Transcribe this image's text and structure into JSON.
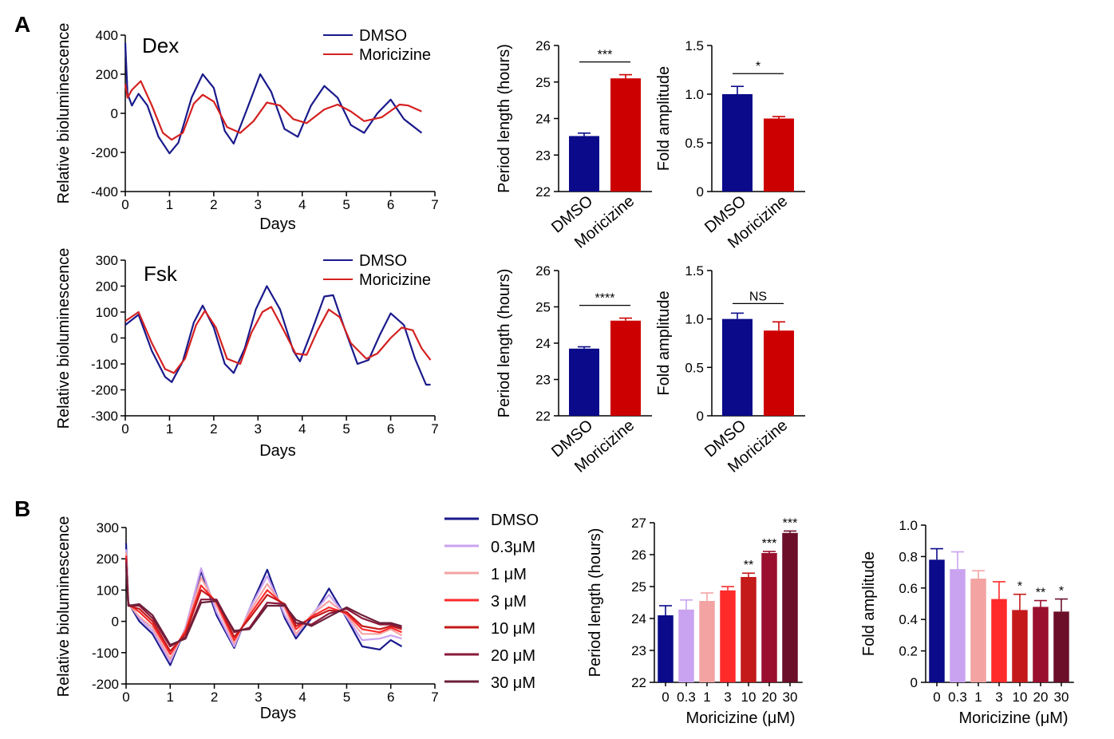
{
  "chart_data": [
    {
      "id": "A_dex_trace",
      "type": "line",
      "panel_label": "A",
      "annotation": "Dex",
      "xlabel": "Days",
      "ylabel": "Relative bioluminescence",
      "xlim": [
        0,
        7
      ],
      "ylim": [
        -400,
        400
      ],
      "xticks": [
        0,
        1,
        2,
        3,
        4,
        5,
        6,
        7
      ],
      "yticks": [
        -400,
        -200,
        0,
        200,
        400
      ],
      "legend_position": "top-right",
      "series": [
        {
          "name": "DMSO",
          "color": "#1a1a8c",
          "x": [
            0,
            0.05,
            0.15,
            0.3,
            0.5,
            0.75,
            1.0,
            1.2,
            1.5,
            1.75,
            2.0,
            2.25,
            2.45,
            2.75,
            3.05,
            3.3,
            3.6,
            3.9,
            4.2,
            4.5,
            4.8,
            5.1,
            5.4,
            5.7,
            6.0,
            6.3,
            6.7
          ],
          "values": [
            360,
            100,
            40,
            100,
            40,
            -120,
            -205,
            -150,
            80,
            200,
            130,
            -90,
            -155,
            20,
            200,
            110,
            -80,
            -120,
            40,
            140,
            80,
            -60,
            -100,
            0,
            70,
            -30,
            -100
          ]
        },
        {
          "name": "Moricizine",
          "color": "#d42020",
          "x": [
            0,
            0.05,
            0.15,
            0.35,
            0.6,
            0.85,
            1.05,
            1.3,
            1.55,
            1.75,
            2.0,
            2.3,
            2.6,
            2.9,
            3.2,
            3.5,
            3.8,
            4.1,
            4.5,
            4.8,
            5.1,
            5.4,
            5.8,
            6.2,
            6.4,
            6.7
          ],
          "values": [
            150,
            80,
            120,
            165,
            40,
            -100,
            -135,
            -100,
            50,
            95,
            60,
            -70,
            -100,
            -40,
            55,
            40,
            -30,
            -50,
            20,
            45,
            10,
            -40,
            -20,
            45,
            40,
            10
          ]
        }
      ]
    },
    {
      "id": "A_dex_period",
      "type": "bar",
      "categories": [
        "DMSO",
        "Moricizine"
      ],
      "values": [
        23.52,
        25.1
      ],
      "errors": [
        0.08,
        0.1
      ],
      "colors": [
        "#0a0a8a",
        "#cc0000"
      ],
      "ylabel": "Period length (hours)",
      "ylim": [
        22,
        26
      ],
      "yticks": [
        22,
        23,
        24,
        25,
        26
      ],
      "significance": [
        {
          "from": 0,
          "to": 1,
          "label": "***"
        }
      ]
    },
    {
      "id": "A_dex_amp",
      "type": "bar",
      "categories": [
        "DMSO",
        "Moricizine"
      ],
      "values": [
        1.0,
        0.75
      ],
      "errors": [
        0.08,
        0.02
      ],
      "colors": [
        "#0a0a8a",
        "#cc0000"
      ],
      "ylabel": "Fold amplitude",
      "ylim": [
        0,
        1.5
      ],
      "yticks": [
        0,
        0.5,
        1.0,
        1.5
      ],
      "ytick_labels": [
        "0",
        "0.5",
        "1.0",
        "1.5"
      ],
      "significance": [
        {
          "from": 0,
          "to": 1,
          "label": "*"
        }
      ]
    },
    {
      "id": "A_fsk_trace",
      "type": "line",
      "annotation": "Fsk",
      "xlabel": "Days",
      "ylabel": "Relative bioluminescence",
      "xlim": [
        0,
        7
      ],
      "ylim": [
        -300,
        300
      ],
      "xticks": [
        0,
        1,
        2,
        3,
        4,
        5,
        6,
        7
      ],
      "yticks": [
        -300,
        -200,
        -100,
        0,
        100,
        200,
        300
      ],
      "legend_position": "top-right",
      "series": [
        {
          "name": "DMSO",
          "color": "#1a1a8c",
          "x": [
            0,
            0.3,
            0.6,
            0.9,
            1.05,
            1.3,
            1.55,
            1.75,
            2.0,
            2.25,
            2.45,
            2.7,
            2.95,
            3.2,
            3.5,
            3.8,
            3.95,
            4.2,
            4.5,
            4.7,
            4.95,
            5.25,
            5.5,
            5.75,
            6.0,
            6.3,
            6.55,
            6.8,
            6.9
          ],
          "values": [
            50,
            90,
            -50,
            -150,
            -170,
            -90,
            60,
            125,
            40,
            -100,
            -135,
            -40,
            110,
            200,
            110,
            -50,
            -90,
            20,
            160,
            165,
            40,
            -100,
            -85,
            10,
            95,
            50,
            -80,
            -180,
            -180
          ]
        },
        {
          "name": "Moricizine",
          "color": "#d42020",
          "x": [
            0,
            0.3,
            0.6,
            0.9,
            1.1,
            1.35,
            1.6,
            1.8,
            2.05,
            2.3,
            2.6,
            2.85,
            3.1,
            3.3,
            3.55,
            3.85,
            4.1,
            4.35,
            4.6,
            4.85,
            5.1,
            5.45,
            5.7,
            6.0,
            6.25,
            6.5,
            6.7,
            6.9
          ],
          "values": [
            65,
            100,
            -20,
            -120,
            -135,
            -80,
            50,
            105,
            40,
            -80,
            -100,
            20,
            100,
            120,
            40,
            -60,
            -65,
            30,
            110,
            80,
            -20,
            -80,
            -60,
            0,
            40,
            30,
            -40,
            -85
          ]
        }
      ]
    },
    {
      "id": "A_fsk_period",
      "type": "bar",
      "categories": [
        "DMSO",
        "Moricizine"
      ],
      "values": [
        23.85,
        24.62
      ],
      "errors": [
        0.05,
        0.07
      ],
      "colors": [
        "#0a0a8a",
        "#cc0000"
      ],
      "ylabel": "Period length (hours)",
      "ylim": [
        22,
        26
      ],
      "yticks": [
        22,
        23,
        24,
        25,
        26
      ],
      "significance": [
        {
          "from": 0,
          "to": 1,
          "label": "****"
        }
      ]
    },
    {
      "id": "A_fsk_amp",
      "type": "bar",
      "categories": [
        "DMSO",
        "Moricizine"
      ],
      "values": [
        1.0,
        0.88
      ],
      "errors": [
        0.06,
        0.09
      ],
      "colors": [
        "#0a0a8a",
        "#cc0000"
      ],
      "ylabel": "Fold amplitude",
      "ylim": [
        0,
        1.5
      ],
      "yticks": [
        0,
        0.5,
        1.0,
        1.5
      ],
      "ytick_labels": [
        "0",
        "0.5",
        "1.0",
        "1.5"
      ],
      "significance": [
        {
          "from": 0,
          "to": 1,
          "label": "NS"
        }
      ]
    },
    {
      "id": "B_trace",
      "type": "line",
      "panel_label": "B",
      "xlabel": "Days",
      "ylabel": "Relative bioluminescence",
      "xlim": [
        0,
        7
      ],
      "ylim": [
        -200,
        300
      ],
      "xticks": [
        0,
        1,
        2,
        3,
        4,
        5,
        6,
        7
      ],
      "yticks": [
        -200,
        -100,
        0,
        100,
        200,
        300
      ],
      "legend_position": "right",
      "x": [
        0,
        0.05,
        0.3,
        0.6,
        1.0,
        1.35,
        1.7,
        2.05,
        2.45,
        2.8,
        3.2,
        3.6,
        3.85,
        4.2,
        4.6,
        5.0,
        5.35,
        5.75,
        6.0,
        6.25
      ],
      "series": [
        {
          "name": "DMSO",
          "color": "#1a1a8c",
          "values": [
            250,
            60,
            0,
            -40,
            -140,
            -20,
            160,
            20,
            -85,
            40,
            165,
            10,
            -55,
            10,
            105,
            10,
            -80,
            -90,
            -60,
            -80
          ]
        },
        {
          "name": "0.3μM",
          "color": "#c9a3f0",
          "values": [
            230,
            60,
            10,
            -30,
            -130,
            -20,
            170,
            30,
            -80,
            40,
            145,
            20,
            -45,
            20,
            85,
            15,
            -60,
            -55,
            -45,
            -55
          ]
        },
        {
          "name": "1 μM",
          "color": "#f4a3a3",
          "values": [
            220,
            55,
            15,
            -20,
            -120,
            -25,
            140,
            50,
            -70,
            30,
            120,
            40,
            -40,
            20,
            65,
            20,
            -40,
            -40,
            -25,
            -45
          ]
        },
        {
          "name": "3 μM",
          "color": "#ff2a2a",
          "values": [
            210,
            55,
            30,
            -10,
            -105,
            -30,
            115,
            60,
            -60,
            20,
            100,
            50,
            -25,
            15,
            45,
            25,
            -25,
            -35,
            -20,
            -35
          ]
        },
        {
          "name": "10 μM",
          "color": "#c41a1a",
          "values": [
            200,
            50,
            40,
            0,
            -95,
            -40,
            100,
            65,
            -50,
            10,
            85,
            55,
            -15,
            10,
            35,
            30,
            -15,
            -25,
            -15,
            -25
          ]
        },
        {
          "name": "20 μM",
          "color": "#8a1a3a",
          "values": [
            190,
            50,
            50,
            10,
            -80,
            -50,
            70,
            70,
            -35,
            -20,
            60,
            55,
            -5,
            -10,
            25,
            40,
            10,
            -10,
            -10,
            -20
          ]
        },
        {
          "name": "30 μM",
          "color": "#6b1f3a",
          "values": [
            180,
            50,
            55,
            20,
            -75,
            -55,
            60,
            65,
            -30,
            -25,
            50,
            50,
            5,
            -15,
            15,
            45,
            20,
            -5,
            -5,
            -15
          ]
        }
      ]
    },
    {
      "id": "B_period",
      "type": "bar",
      "categories": [
        "0",
        "0.3",
        "1",
        "3",
        "10",
        "20",
        "30"
      ],
      "values": [
        24.1,
        24.28,
        24.55,
        24.88,
        25.3,
        26.05,
        26.68
      ],
      "errors": [
        0.3,
        0.3,
        0.25,
        0.12,
        0.12,
        0.05,
        0.06
      ],
      "colors": [
        "#0a0a8a",
        "#c9a3f0",
        "#f4a3a3",
        "#ff2a2a",
        "#c41a1a",
        "#9a0f2e",
        "#6b0f2a"
      ],
      "xlabel": "Moricizine (μM)",
      "ylabel": "Period length (hours)",
      "ylim": [
        22,
        27
      ],
      "yticks": [
        22,
        23,
        24,
        25,
        26,
        27
      ],
      "bar_labels": [
        "",
        "",
        "",
        "",
        "**",
        "***",
        "***"
      ]
    },
    {
      "id": "B_amp",
      "type": "bar",
      "categories": [
        "0",
        "0.3",
        "1",
        "3",
        "10",
        "20",
        "30"
      ],
      "values": [
        0.78,
        0.72,
        0.66,
        0.53,
        0.46,
        0.48,
        0.45
      ],
      "errors": [
        0.07,
        0.11,
        0.05,
        0.11,
        0.1,
        0.04,
        0.08
      ],
      "colors": [
        "#0a0a8a",
        "#c9a3f0",
        "#f4a3a3",
        "#ff2a2a",
        "#c41a1a",
        "#9a0f2e",
        "#6b0f2a"
      ],
      "xlabel": "Moricizine (μM)",
      "ylabel": "Fold amplitude",
      "ylim": [
        0,
        1.0
      ],
      "yticks": [
        0,
        0.2,
        0.4,
        0.6,
        0.8,
        1.0
      ],
      "ytick_labels": [
        "0",
        "0.2",
        "0.4",
        "0.6",
        "0.8",
        "1.0"
      ],
      "bar_labels": [
        "",
        "",
        "",
        "",
        "*",
        "**",
        "*"
      ]
    }
  ]
}
